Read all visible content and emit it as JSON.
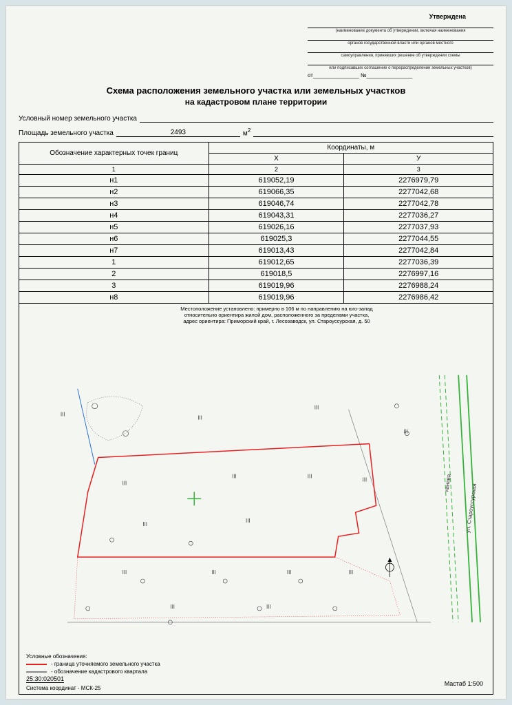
{
  "approval": {
    "approved": "Утверждена",
    "cap1": "(наименование документа об утверждении, включая наименования",
    "cap2": "органов государственной власти или органов местного",
    "cap3": "самоуправления, принявших решение об утверждении схемы",
    "cap4": "или подписавших соглашение о перераспределении земельных участков)",
    "ot": "от_______________ №_______________"
  },
  "title": "Схема расположения земельного участка или земельных участков",
  "subtitle": "на кадастровом плане территории",
  "field_num": "Условный номер земельного участка",
  "field_area": "Площадь земельного участка",
  "area_value": "2493",
  "area_unit": "м",
  "area_exp": "2",
  "table": {
    "h_points": "Обозначение\nхарактерных точек границ",
    "h_coords": "Координаты, м",
    "h_x": "X",
    "h_y": "У",
    "sub1": "1",
    "sub2": "2",
    "sub3": "3",
    "rows": [
      {
        "p": "н1",
        "x": "619052,19",
        "y": "2276979,79"
      },
      {
        "p": "н2",
        "x": "619066,35",
        "y": "2277042,68"
      },
      {
        "p": "н3",
        "x": "619046,74",
        "y": "2277042,78"
      },
      {
        "p": "н4",
        "x": "619043,31",
        "y": "2277036,27"
      },
      {
        "p": "н5",
        "x": "619026,16",
        "y": "2277037,93"
      },
      {
        "p": "н6",
        "x": "619025,3",
        "y": "2277044,55"
      },
      {
        "p": "н7",
        "x": "619013,43",
        "y": "2277042,84"
      },
      {
        "p": "1",
        "x": "619012,65",
        "y": "2277036,39"
      },
      {
        "p": "2",
        "x": "619018,5",
        "y": "2276997,16"
      },
      {
        "p": "3",
        "x": "619019,96",
        "y": "2276988,24"
      },
      {
        "p": "н8",
        "x": "619019,96",
        "y": "2276986,42"
      }
    ]
  },
  "map": {
    "location": "Местоположение установлено: примерно в 106 м по направлению на юго-запад\nотносительно ориентира жилой дом, расположенного за пределами участка,\nадрес ориентира: Приморский край, г. Лесозаводск, ул. Староуссурская, д. 50",
    "legend_title": "Условные обозначения:",
    "legend_red": "- граница уточняемого земельного участка",
    "legend_gray": "- обозначение кадастрового квартала",
    "cad_number": "25:30:020501",
    "system": "Система координат - МСК-25",
    "scale": "Мастаб 1:500",
    "street": "ул. Староуссурская",
    "kanava": "канава",
    "marker3": "III",
    "colors": {
      "plot": "#e62020",
      "road": "#35b23a",
      "blue": "#2a6fd6",
      "gray": "#888888",
      "bg": "#f4f6f2"
    }
  }
}
